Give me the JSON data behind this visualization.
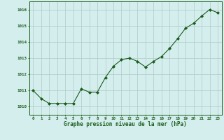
{
  "x": [
    0,
    1,
    2,
    3,
    4,
    5,
    6,
    7,
    8,
    9,
    10,
    11,
    12,
    13,
    14,
    15,
    16,
    17,
    18,
    19,
    20,
    21,
    22,
    23
  ],
  "y": [
    1011.0,
    1010.5,
    1010.2,
    1010.2,
    1010.2,
    1010.2,
    1011.1,
    1010.9,
    1010.9,
    1011.8,
    1012.5,
    1012.9,
    1013.0,
    1012.8,
    1012.45,
    1012.8,
    1013.1,
    1013.6,
    1014.2,
    1014.85,
    1015.15,
    1015.6,
    1016.0,
    1015.8
  ],
  "line_color": "#1a5c1a",
  "marker_color": "#1a5c1a",
  "bg_color": "#d4eeee",
  "grid_color": "#b0c8c8",
  "xlabel": "Graphe pression niveau de la mer (hPa)",
  "xlabel_color": "#1a5c1a",
  "tick_color": "#1a5c1a",
  "ylim": [
    1009.5,
    1016.5
  ],
  "yticks": [
    1010,
    1011,
    1012,
    1013,
    1014,
    1015,
    1016
  ],
  "xticks": [
    0,
    1,
    2,
    3,
    4,
    5,
    6,
    7,
    8,
    9,
    10,
    11,
    12,
    13,
    14,
    15,
    16,
    17,
    18,
    19,
    20,
    21,
    22,
    23
  ]
}
